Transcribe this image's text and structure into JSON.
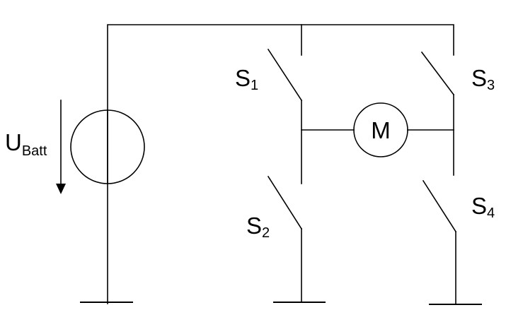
{
  "source": {
    "main": "U",
    "sub": "Batt"
  },
  "motor": {
    "label": "M"
  },
  "switches": [
    {
      "main": "S",
      "sub": "1"
    },
    {
      "main": "S",
      "sub": "2"
    },
    {
      "main": "S",
      "sub": "3"
    },
    {
      "main": "S",
      "sub": "4"
    }
  ],
  "colors": {
    "line": "#000000",
    "background": "#ffffff"
  }
}
